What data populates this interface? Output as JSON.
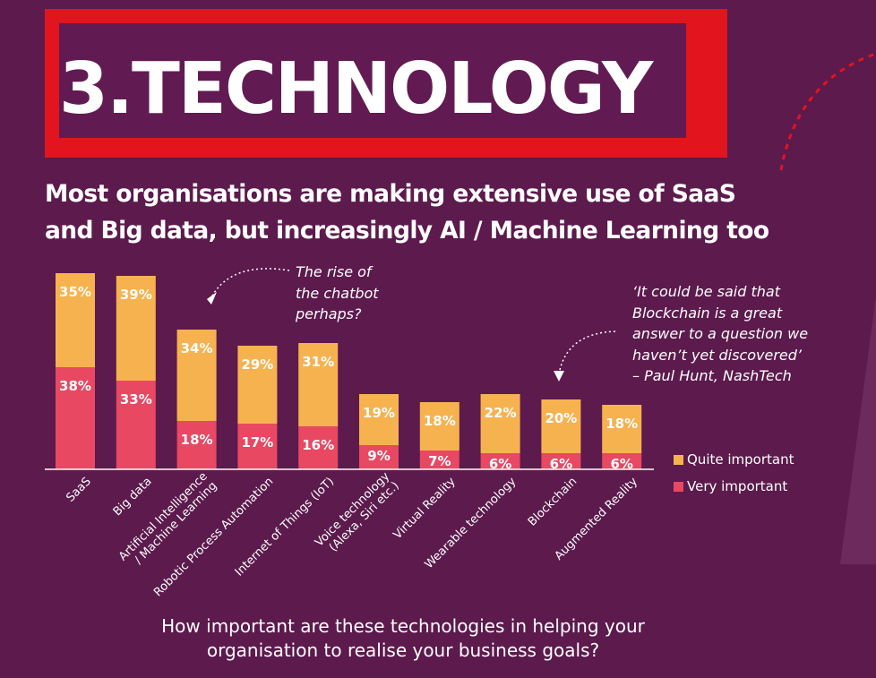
{
  "header": {
    "title": "3.TECHNOLOGY",
    "subtitle_line1": "Most organisations are making extensive use of SaaS",
    "subtitle_line2": "and Big data, but increasingly AI / Machine Learning too"
  },
  "annotations": {
    "chatbot_line1": "The rise of",
    "chatbot_line2": "the chatbot",
    "chatbot_line3": "perhaps?",
    "quote_line1": "‘It could be said that",
    "quote_line2": "Blockchain is a great",
    "quote_line3": "answer to a question we",
    "quote_line4": "haven’t yet discovered’",
    "quote_line5": "– Paul Hunt, NashTech"
  },
  "footer": {
    "question_line1": "How important are these technologies in helping your",
    "question_line2": "organisation to realise your business goals?"
  },
  "colors": {
    "background": "#5c1a4d",
    "accent_red": "#e2141d",
    "quite_important": "#f7b250",
    "very_important": "#e84862"
  },
  "chart_data": {
    "type": "bar",
    "stacked": true,
    "categories": [
      [
        "SaaS"
      ],
      [
        "Big data"
      ],
      [
        "Artificial Intelligence",
        "/ Machine Learning"
      ],
      [
        "Robotic Process Automation"
      ],
      [
        "Internet of Things (IoT)"
      ],
      [
        "Voice technology",
        "(Alexa, Siri etc.)"
      ],
      [
        "Virtual Reality"
      ],
      [
        "Wearable technology"
      ],
      [
        "Blockchain"
      ],
      [
        "Augmented Reality"
      ]
    ],
    "series": [
      {
        "name": "Very important",
        "values": [
          38,
          33,
          18,
          17,
          16,
          9,
          7,
          6,
          6,
          6
        ]
      },
      {
        "name": "Quite important",
        "values": [
          35,
          39,
          34,
          29,
          31,
          19,
          18,
          22,
          20,
          18
        ]
      }
    ],
    "value_suffix": "%",
    "legend_position": "right",
    "grid": false,
    "ylim": [
      0,
      80
    ]
  }
}
